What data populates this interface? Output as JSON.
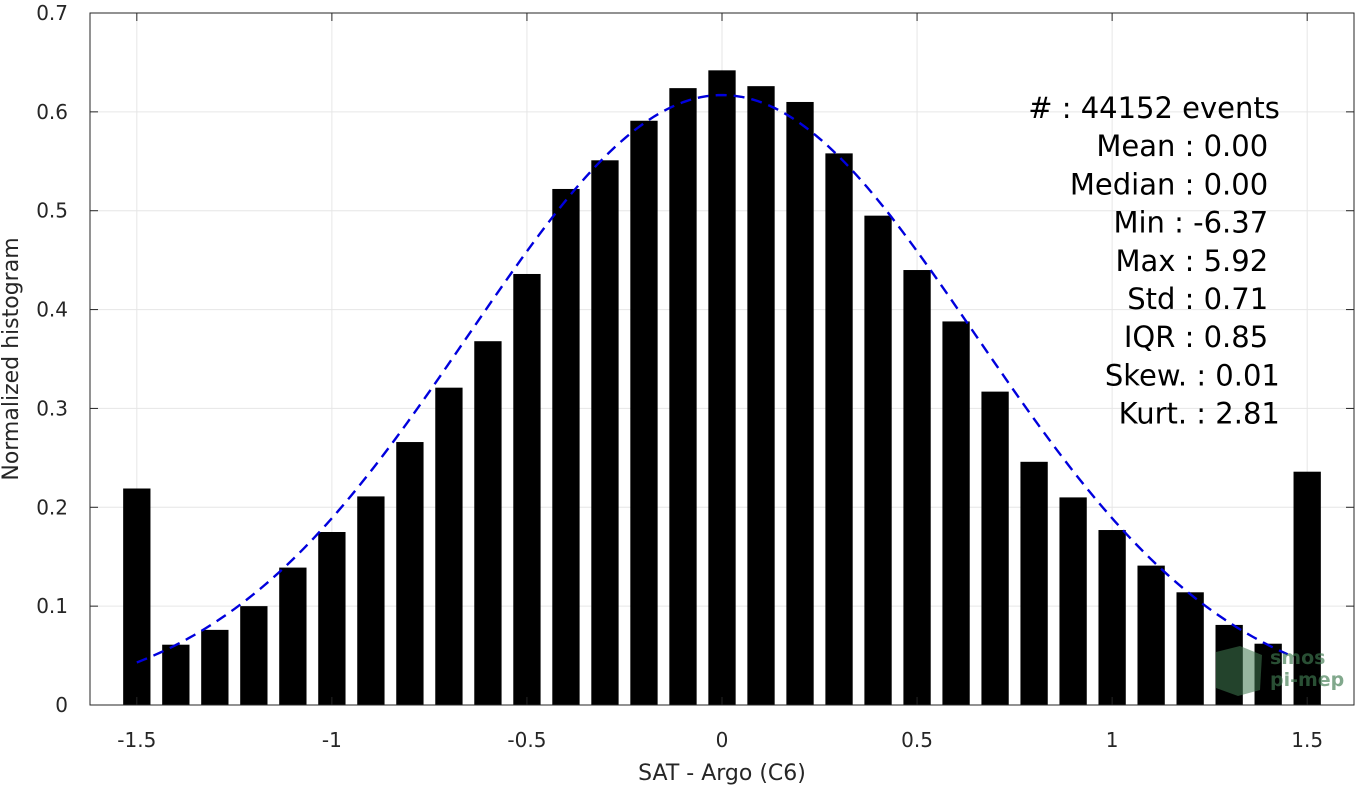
{
  "chart_data": {
    "type": "bar",
    "title": "",
    "xlabel": "SAT - Argo (C6)",
    "ylabel": "Normalized histogram",
    "xlim": [
      -1.62,
      1.62
    ],
    "ylim": [
      0,
      0.7
    ],
    "xticks": [
      -1.5,
      -1,
      -0.5,
      0,
      0.5,
      1,
      1.5
    ],
    "xtick_labels": [
      "-1.5",
      "-1",
      "-0.5",
      "0",
      "0.5",
      "1",
      "1.5"
    ],
    "yticks": [
      0,
      0.1,
      0.2,
      0.3,
      0.4,
      0.5,
      0.6,
      0.7
    ],
    "ytick_labels": [
      "0",
      "0.1",
      "0.2",
      "0.3",
      "0.4",
      "0.5",
      "0.6",
      "0.7"
    ],
    "grid": true,
    "bar_color": "#000000",
    "bin_width": 0.1,
    "bars": {
      "x": [
        -1.5,
        -1.4,
        -1.3,
        -1.2,
        -1.1,
        -1.0,
        -0.9,
        -0.8,
        -0.7,
        -0.6,
        -0.5,
        -0.4,
        -0.3,
        -0.2,
        -0.1,
        0.0,
        0.1,
        0.2,
        0.3,
        0.4,
        0.5,
        0.6,
        0.7,
        0.8,
        0.9,
        1.0,
        1.1,
        1.2,
        1.3,
        1.4,
        1.5
      ],
      "values": [
        0.219,
        0.061,
        0.076,
        0.1,
        0.139,
        0.175,
        0.211,
        0.266,
        0.321,
        0.368,
        0.436,
        0.522,
        0.551,
        0.591,
        0.624,
        0.642,
        0.626,
        0.61,
        0.558,
        0.495,
        0.44,
        0.388,
        0.317,
        0.246,
        0.21,
        0.177,
        0.141,
        0.114,
        0.081,
        0.062,
        0.236
      ]
    },
    "fit_curve": {
      "type": "gaussian",
      "mean": 0.0,
      "std": 0.65,
      "peak": 0.617,
      "x_range": [
        -1.5,
        1.45
      ],
      "color": "#0000dd",
      "style": "dashed"
    },
    "stats": [
      {
        "label": "#  : 44152 events",
        "x_right": 1.43
      },
      {
        "label": "Mean : 0.00",
        "x_right": 1.4
      },
      {
        "label": "Median : 0.00",
        "x_right": 1.4
      },
      {
        "label": "Min : -6.37",
        "x_right": 1.4
      },
      {
        "label": "Max : 5.92",
        "x_right": 1.4
      },
      {
        "label": "Std : 0.71",
        "x_right": 1.4
      },
      {
        "label": "IQR : 0.85",
        "x_right": 1.4
      },
      {
        "label": "Skew. : 0.01",
        "x_right": 1.43
      },
      {
        "label": "Kurt. : 2.81",
        "x_right": 1.43
      }
    ],
    "watermark": {
      "line1": "smos",
      "line2": "pi-mep"
    }
  }
}
